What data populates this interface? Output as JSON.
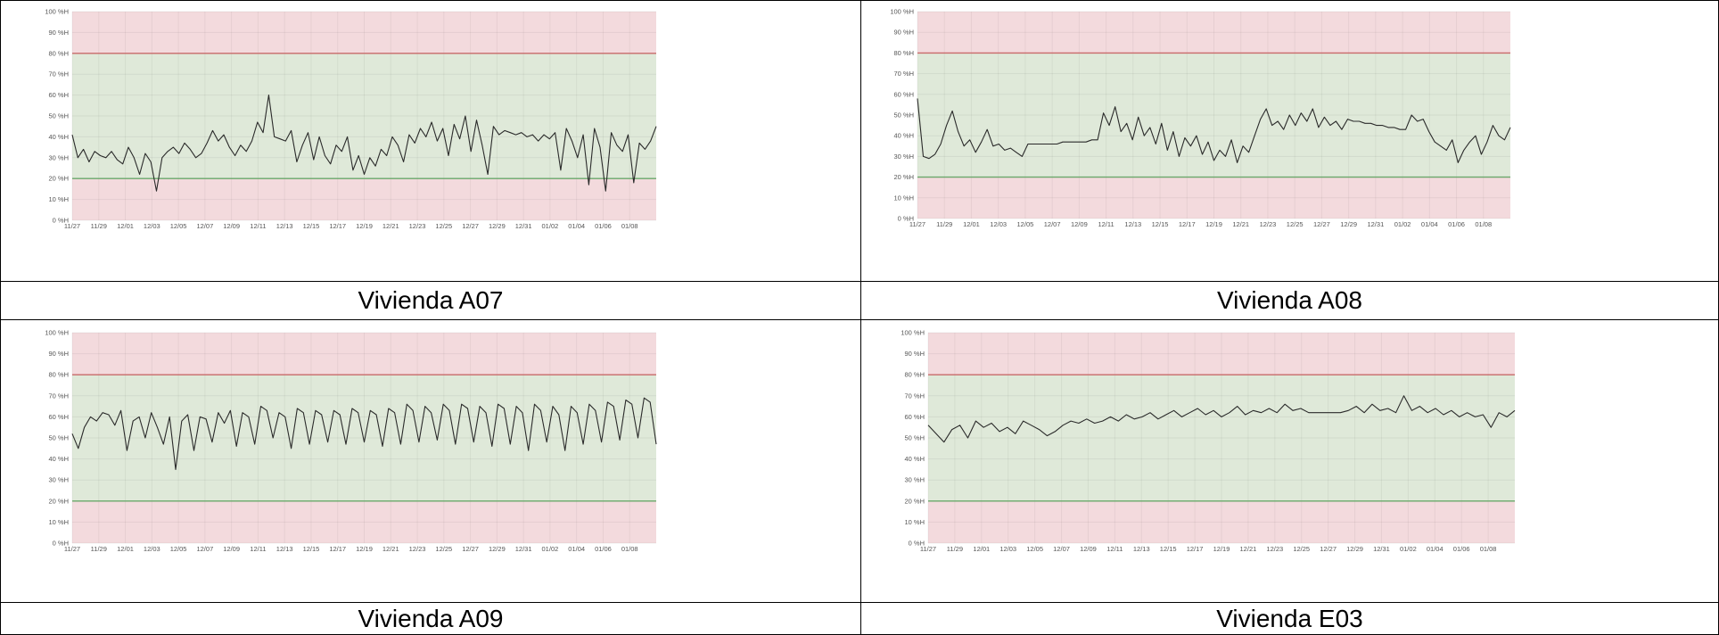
{
  "colors": {
    "band_ok": "#dfe9d9",
    "band_bad": "#f3dadd",
    "upper_limit_line": "#c96a6a",
    "lower_limit_line": "#6aa86a",
    "series_line": "#2a2a2a"
  },
  "panels": [
    {
      "caption": "Vivienda A07",
      "chart_data": {
        "type": "line",
        "title": "",
        "xlabel": "",
        "ylabel": "",
        "ylim": [
          0,
          100
        ],
        "y_ticks": [
          "0 %H",
          "10 %H",
          "20 %H",
          "30 %H",
          "40 %H",
          "50 %H",
          "60 %H",
          "70 %H",
          "80 %H",
          "90 %H",
          "100 %H"
        ],
        "x_ticks": [
          "11/27",
          "11/29",
          "12/01",
          "12/03",
          "12/05",
          "12/07",
          "12/09",
          "12/11",
          "12/13",
          "12/15",
          "12/17",
          "12/19",
          "12/21",
          "12/23",
          "12/25",
          "12/27",
          "12/29",
          "12/31",
          "01/02",
          "01/04",
          "01/06",
          "01/08"
        ],
        "bands": {
          "upper_limit": 80,
          "lower_limit": 20
        },
        "grid": true,
        "series": [
          {
            "x_start_day": 0,
            "x_end_day": 44,
            "values": [
              41,
              30,
              34,
              28,
              33,
              31,
              30,
              33,
              29,
              27,
              35,
              30,
              22,
              32,
              28,
              14,
              30,
              33,
              35,
              32,
              37,
              34,
              30,
              32,
              37,
              43,
              38,
              41,
              35,
              31,
              36,
              33,
              38,
              47,
              42,
              60,
              40,
              39,
              38,
              43,
              28,
              36,
              42,
              29,
              40,
              31,
              27,
              36,
              33,
              40,
              24,
              31,
              22,
              30,
              26,
              34,
              31,
              40,
              36,
              28,
              41,
              37,
              44,
              40,
              47,
              38,
              44,
              31,
              46,
              39,
              50,
              33,
              48,
              36,
              22,
              45,
              41,
              43,
              42,
              41,
              42,
              40,
              41,
              38,
              41,
              39,
              42,
              24,
              44,
              38,
              30,
              41,
              17,
              44,
              35,
              14,
              42,
              36,
              33,
              41,
              18,
              37,
              34,
              38,
              45
            ]
          }
        ]
      }
    },
    {
      "caption": "Vivienda A08",
      "chart_data": {
        "type": "line",
        "title": "",
        "xlabel": "",
        "ylabel": "",
        "ylim": [
          0,
          100
        ],
        "y_ticks": [
          "0 %H",
          "10 %H",
          "20 %H",
          "30 %H",
          "40 %H",
          "50 %H",
          "60 %H",
          "70 %H",
          "80 %H",
          "90 %H",
          "100 %H"
        ],
        "x_ticks": [
          "11/27",
          "11/29",
          "12/01",
          "12/03",
          "12/05",
          "12/07",
          "12/09",
          "12/11",
          "12/13",
          "12/15",
          "12/17",
          "12/19",
          "12/21",
          "12/23",
          "12/25",
          "12/27",
          "12/29",
          "12/31",
          "01/02",
          "01/04",
          "01/06",
          "01/08"
        ],
        "bands": {
          "upper_limit": 80,
          "lower_limit": 20
        },
        "grid": true,
        "series": [
          {
            "x_start_day": 0,
            "x_end_day": 44,
            "values": [
              58,
              30,
              29,
              31,
              36,
              45,
              52,
              42,
              35,
              38,
              32,
              37,
              43,
              35,
              36,
              33,
              34,
              32,
              30,
              36,
              36,
              36,
              36,
              36,
              36,
              37,
              37,
              37,
              37,
              37,
              38,
              38,
              51,
              45,
              54,
              42,
              46,
              38,
              49,
              40,
              44,
              36,
              46,
              33,
              42,
              30,
              39,
              35,
              40,
              31,
              37,
              28,
              33,
              30,
              38,
              27,
              35,
              32,
              40,
              48,
              53,
              45,
              47,
              43,
              50,
              45,
              51,
              47,
              53,
              44,
              49,
              45,
              47,
              43,
              48,
              47,
              47,
              46,
              46,
              45,
              45,
              44,
              44,
              43,
              43,
              50,
              47,
              48,
              42,
              37,
              35,
              33,
              38,
              27,
              33,
              37,
              40,
              31,
              37,
              45,
              40,
              38,
              44
            ]
          }
        ]
      }
    },
    {
      "caption": "Vivienda A09",
      "chart_data": {
        "type": "line",
        "title": "",
        "xlabel": "",
        "ylabel": "",
        "ylim": [
          0,
          100
        ],
        "y_ticks": [
          "0 %H",
          "10 %H",
          "20 %H",
          "30 %H",
          "40 %H",
          "50 %H",
          "60 %H",
          "70 %H",
          "80 %H",
          "90 %H",
          "100 %H"
        ],
        "x_ticks": [
          "11/27",
          "11/29",
          "12/01",
          "12/03",
          "12/05",
          "12/07",
          "12/09",
          "12/11",
          "12/13",
          "12/15",
          "12/17",
          "12/19",
          "12/21",
          "12/23",
          "12/25",
          "12/27",
          "12/29",
          "12/31",
          "01/02",
          "01/04",
          "01/06",
          "01/08"
        ],
        "bands": {
          "upper_limit": 80,
          "lower_limit": 20
        },
        "grid": true,
        "series": [
          {
            "x_start_day": 0,
            "x_end_day": 44,
            "values": [
              52,
              45,
              55,
              60,
              58,
              62,
              61,
              56,
              63,
              44,
              58,
              60,
              50,
              62,
              55,
              47,
              60,
              35,
              58,
              61,
              44,
              60,
              59,
              48,
              62,
              57,
              63,
              46,
              62,
              60,
              47,
              65,
              63,
              50,
              62,
              60,
              45,
              64,
              62,
              47,
              63,
              61,
              48,
              63,
              61,
              47,
              64,
              62,
              48,
              63,
              61,
              46,
              64,
              62,
              47,
              66,
              63,
              48,
              65,
              62,
              49,
              66,
              63,
              47,
              66,
              64,
              48,
              65,
              62,
              46,
              66,
              64,
              47,
              65,
              62,
              44,
              66,
              63,
              48,
              65,
              61,
              44,
              65,
              62,
              47,
              66,
              63,
              48,
              67,
              65,
              49,
              68,
              66,
              50,
              69,
              67,
              47
            ]
          }
        ]
      }
    },
    {
      "caption": "Vivienda E03",
      "chart_data": {
        "type": "line",
        "title": "",
        "xlabel": "",
        "ylabel": "",
        "ylim": [
          0,
          100
        ],
        "y_ticks": [
          "0 %H",
          "10 %H",
          "20 %H",
          "30 %H",
          "40 %H",
          "50 %H",
          "60 %H",
          "70 %H",
          "80 %H",
          "90 %H",
          "100 %H"
        ],
        "x_ticks": [
          "11/27",
          "11/29",
          "12/01",
          "12/03",
          "12/05",
          "12/07",
          "12/09",
          "12/11",
          "12/13",
          "12/15",
          "12/17",
          "12/19",
          "12/21",
          "12/23",
          "12/25",
          "12/27",
          "12/29",
          "12/31",
          "01/02",
          "01/04",
          "01/06",
          "01/08"
        ],
        "bands": {
          "upper_limit": 80,
          "lower_limit": 20
        },
        "grid": true,
        "series": [
          {
            "x_start_day": 0,
            "x_end_day": 44,
            "values": [
              56,
              52,
              48,
              54,
              56,
              50,
              58,
              55,
              57,
              53,
              55,
              52,
              58,
              56,
              54,
              51,
              53,
              56,
              58,
              57,
              59,
              57,
              58,
              60,
              58,
              61,
              59,
              60,
              62,
              59,
              61,
              63,
              60,
              62,
              64,
              61,
              63,
              60,
              62,
              65,
              61,
              63,
              62,
              64,
              62,
              66,
              63,
              64,
              62,
              62,
              62,
              62,
              62,
              63,
              65,
              62,
              66,
              63,
              64,
              62,
              70,
              63,
              65,
              62,
              64,
              61,
              63,
              60,
              62,
              60,
              61,
              55,
              62,
              60,
              63
            ]
          }
        ]
      }
    }
  ]
}
